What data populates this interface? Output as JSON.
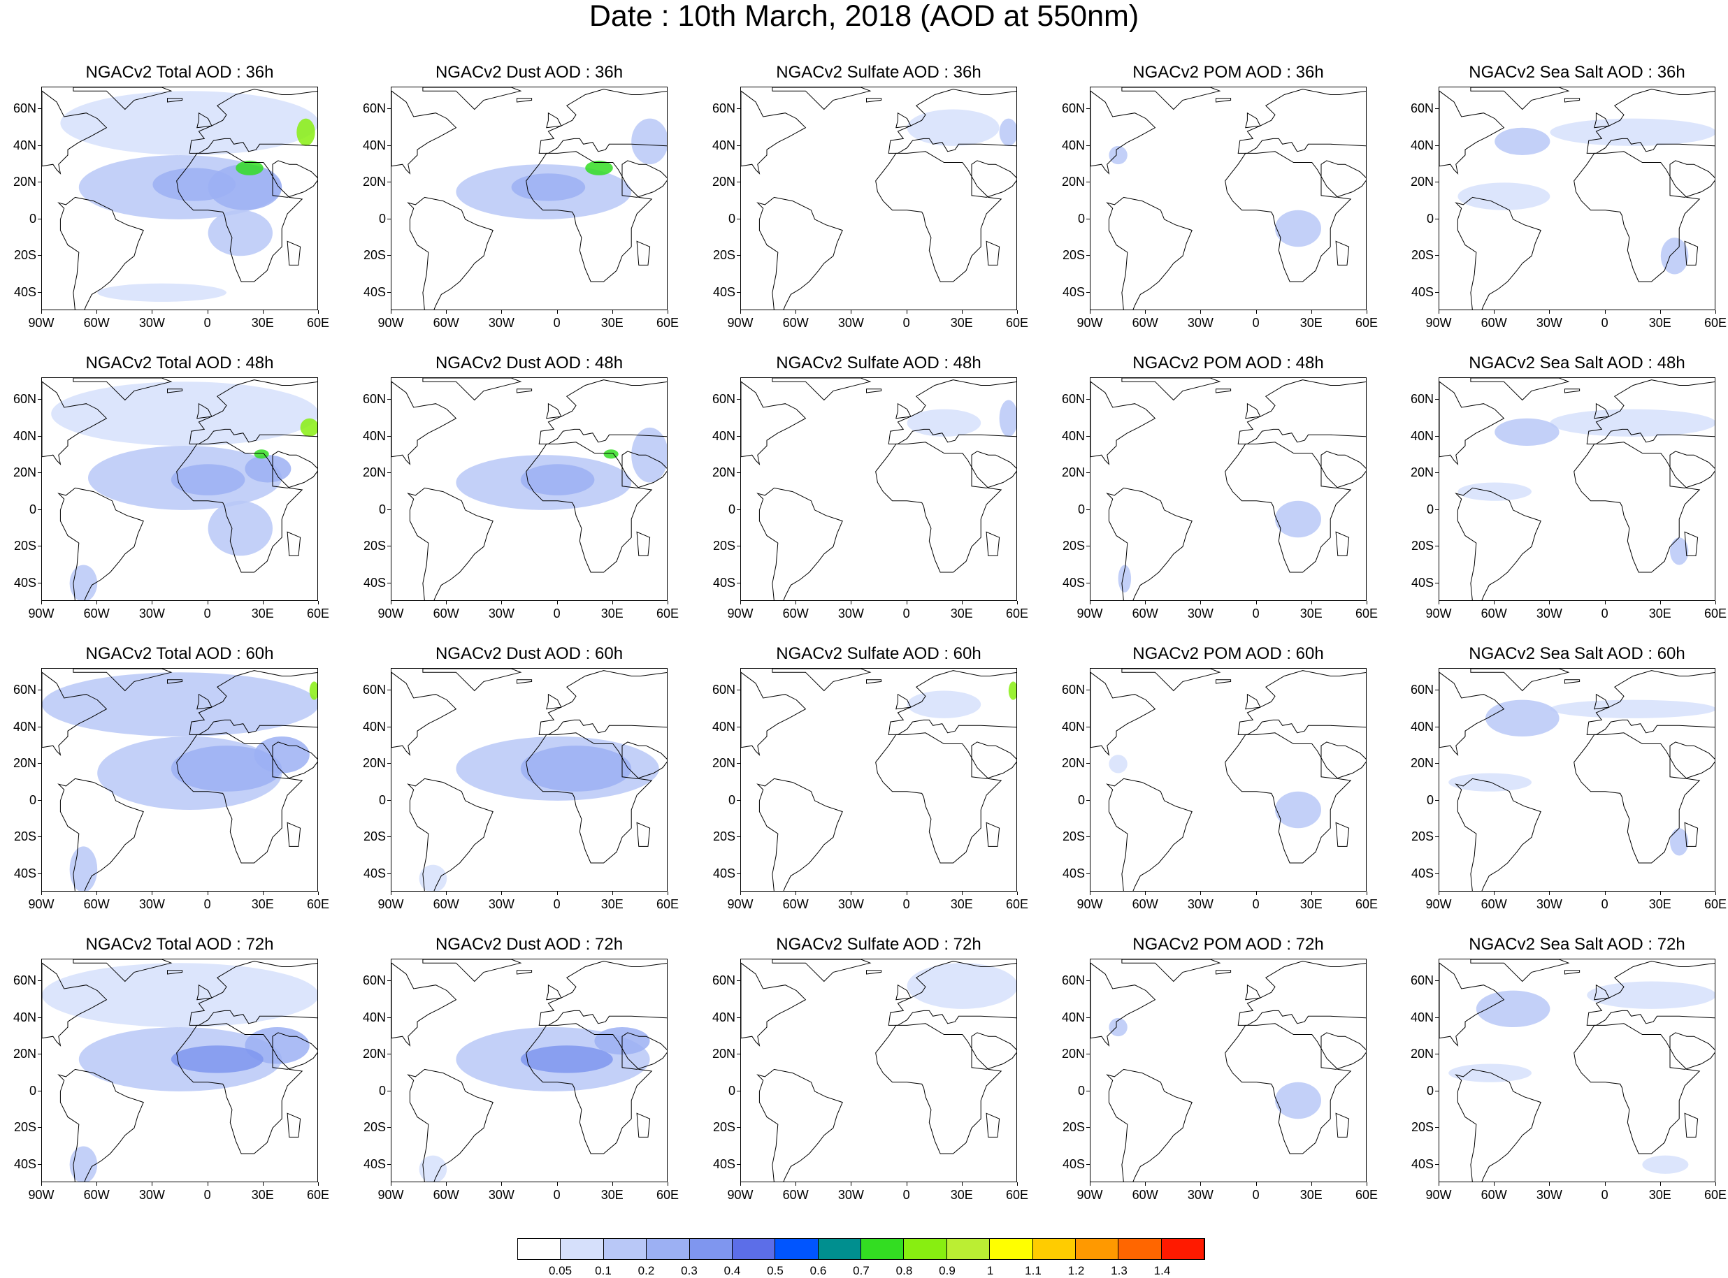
{
  "figure": {
    "title": "Date : 10th March, 2018 (AOD at 550nm)"
  },
  "axes": {
    "lon_ticks": [
      "90W",
      "60W",
      "30W",
      "0",
      "30E",
      "60E"
    ],
    "lat_ticks": [
      "60N",
      "40N",
      "20N",
      "0",
      "20S",
      "40S"
    ],
    "lon_range": [
      -90,
      60
    ],
    "lat_range": [
      -50,
      72
    ]
  },
  "rows": [
    {
      "hour": "36h",
      "panels": [
        {
          "variable": "total",
          "title": "NGACv2 Total AOD : 36h"
        },
        {
          "variable": "dust",
          "title": "NGACv2 Dust AOD : 36h"
        },
        {
          "variable": "sulfate",
          "title": "NGACv2 Sulfate AOD : 36h"
        },
        {
          "variable": "pom",
          "title": "NGACv2 POM AOD : 36h"
        },
        {
          "variable": "seasalt",
          "title": "NGACv2 Sea Salt AOD : 36h"
        }
      ]
    },
    {
      "hour": "48h",
      "panels": [
        {
          "variable": "total",
          "title": "NGACv2 Total AOD : 48h"
        },
        {
          "variable": "dust",
          "title": "NGACv2 Dust AOD : 48h"
        },
        {
          "variable": "sulfate",
          "title": "NGACv2 Sulfate AOD : 48h"
        },
        {
          "variable": "pom",
          "title": "NGACv2 POM AOD : 48h"
        },
        {
          "variable": "seasalt",
          "title": "NGACv2 Sea Salt AOD : 48h"
        }
      ]
    },
    {
      "hour": "60h",
      "panels": [
        {
          "variable": "total",
          "title": "NGACv2 Total AOD : 60h"
        },
        {
          "variable": "dust",
          "title": "NGACv2 Dust AOD : 60h"
        },
        {
          "variable": "sulfate",
          "title": "NGACv2 Sulfate AOD : 60h"
        },
        {
          "variable": "pom",
          "title": "NGACv2 POM AOD : 60h"
        },
        {
          "variable": "seasalt",
          "title": "NGACv2 Sea Salt AOD : 60h"
        }
      ]
    },
    {
      "hour": "72h",
      "panels": [
        {
          "variable": "total",
          "title": "NGACv2 Total AOD : 72h"
        },
        {
          "variable": "dust",
          "title": "NGACv2 Dust AOD : 72h"
        },
        {
          "variable": "sulfate",
          "title": "NGACv2 Sulfate AOD : 72h"
        },
        {
          "variable": "pom",
          "title": "NGACv2 POM AOD : 72h"
        },
        {
          "variable": "seasalt",
          "title": "NGACv2 Sea Salt  AOD : 72h"
        }
      ]
    }
  ],
  "colorbar": {
    "labels": [
      "0.05",
      "0.1",
      "0.2",
      "0.3",
      "0.4",
      "0.5",
      "0.6",
      "0.7",
      "0.8",
      "0.9",
      "1",
      "1.1",
      "1.2",
      "1.3",
      "1.4"
    ],
    "colors": [
      "#ffffff",
      "#d6e0fb",
      "#b9c8f7",
      "#9cb0f3",
      "#7f96ef",
      "#5c6ee8",
      "#0055ff",
      "#008f8f",
      "#33dd22",
      "#88ee11",
      "#bbee33",
      "#ffff00",
      "#ffcc00",
      "#ff9900",
      "#ff6600",
      "#ff1a00"
    ]
  },
  "chart_data": [
    {
      "type": "heatmap",
      "title": "NGACv2 Total AOD",
      "variable": "total",
      "regions_by_hour": {
        "36h": [
          {
            "lon": [
              -30,
              15
            ],
            "lat": [
              10,
              28
            ],
            "level": 3
          },
          {
            "lon": [
              0,
              40
            ],
            "lat": [
              5,
              30
            ],
            "level": 3
          },
          {
            "lon": [
              15,
              30
            ],
            "lat": [
              24,
              32
            ],
            "level": 8
          },
          {
            "lon": [
              48,
              58
            ],
            "lat": [
              40,
              55
            ],
            "level": 9
          },
          {
            "lon": [
              -70,
              40
            ],
            "lat": [
              0,
              35
            ],
            "level": 2
          },
          {
            "lon": [
              -80,
              60
            ],
            "lat": [
              35,
              70
            ],
            "level": 1
          },
          {
            "lon": [
              -60,
              10
            ],
            "lat": [
              -45,
              -35
            ],
            "level": 1
          },
          {
            "lon": [
              0,
              35
            ],
            "lat": [
              -20,
              5
            ],
            "level": 2
          }
        ],
        "48h": [
          {
            "lon": [
              -20,
              20
            ],
            "lat": [
              8,
              25
            ],
            "level": 3
          },
          {
            "lon": [
              20,
              45
            ],
            "lat": [
              15,
              30
            ],
            "level": 3
          },
          {
            "lon": [
              25,
              33
            ],
            "lat": [
              28,
              33
            ],
            "level": 8
          },
          {
            "lon": [
              50,
              60
            ],
            "lat": [
              40,
              50
            ],
            "level": 9
          },
          {
            "lon": [
              -65,
              40
            ],
            "lat": [
              0,
              35
            ],
            "level": 2
          },
          {
            "lon": [
              -85,
              60
            ],
            "lat": [
              35,
              70
            ],
            "level": 1
          },
          {
            "lon": [
              -75,
              -60
            ],
            "lat": [
              -50,
              -30
            ],
            "level": 2
          },
          {
            "lon": [
              0,
              35
            ],
            "lat": [
              -25,
              5
            ],
            "level": 2
          }
        ],
        "60h": [
          {
            "lon": [
              -20,
              40
            ],
            "lat": [
              5,
              30
            ],
            "level": 3
          },
          {
            "lon": [
              25,
              55
            ],
            "lat": [
              15,
              35
            ],
            "level": 3
          },
          {
            "lon": [
              55,
              60
            ],
            "lat": [
              55,
              65
            ],
            "level": 9
          },
          {
            "lon": [
              -60,
              40
            ],
            "lat": [
              -5,
              35
            ],
            "level": 2
          },
          {
            "lon": [
              -90,
              60
            ],
            "lat": [
              35,
              70
            ],
            "level": 2
          },
          {
            "lon": [
              -75,
              -60
            ],
            "lat": [
              -50,
              -25
            ],
            "level": 2
          }
        ],
        "72h": [
          {
            "lon": [
              -20,
              30
            ],
            "lat": [
              10,
              25
            ],
            "level": 4
          },
          {
            "lon": [
              20,
              55
            ],
            "lat": [
              15,
              35
            ],
            "level": 3
          },
          {
            "lon": [
              -70,
              40
            ],
            "lat": [
              0,
              35
            ],
            "level": 2
          },
          {
            "lon": [
              -90,
              60
            ],
            "lat": [
              35,
              70
            ],
            "level": 1
          },
          {
            "lon": [
              -75,
              -60
            ],
            "lat": [
              -50,
              -30
            ],
            "level": 2
          }
        ]
      }
    },
    {
      "type": "heatmap",
      "title": "NGACv2 Dust AOD",
      "variable": "dust",
      "regions_by_hour": {
        "36h": [
          {
            "lon": [
              -25,
              15
            ],
            "lat": [
              10,
              25
            ],
            "level": 3
          },
          {
            "lon": [
              15,
              30
            ],
            "lat": [
              24,
              32
            ],
            "level": 8
          },
          {
            "lon": [
              -55,
              40
            ],
            "lat": [
              0,
              30
            ],
            "level": 2
          },
          {
            "lon": [
              40,
              60
            ],
            "lat": [
              30,
              55
            ],
            "level": 2
          }
        ],
        "48h": [
          {
            "lon": [
              -20,
              20
            ],
            "lat": [
              8,
              25
            ],
            "level": 3
          },
          {
            "lon": [
              25,
              33
            ],
            "lat": [
              28,
              33
            ],
            "level": 8
          },
          {
            "lon": [
              -55,
              40
            ],
            "lat": [
              0,
              30
            ],
            "level": 2
          },
          {
            "lon": [
              40,
              60
            ],
            "lat": [
              15,
              45
            ],
            "level": 2
          }
        ],
        "60h": [
          {
            "lon": [
              -20,
              40
            ],
            "lat": [
              5,
              30
            ],
            "level": 3
          },
          {
            "lon": [
              -55,
              55
            ],
            "lat": [
              0,
              35
            ],
            "level": 2
          },
          {
            "lon": [
              -75,
              -60
            ],
            "lat": [
              -50,
              -35
            ],
            "level": 1
          }
        ],
        "72h": [
          {
            "lon": [
              -20,
              30
            ],
            "lat": [
              10,
              25
            ],
            "level": 4
          },
          {
            "lon": [
              20,
              50
            ],
            "lat": [
              20,
              35
            ],
            "level": 3
          },
          {
            "lon": [
              -55,
              50
            ],
            "lat": [
              0,
              35
            ],
            "level": 2
          },
          {
            "lon": [
              -75,
              -60
            ],
            "lat": [
              -50,
              -35
            ],
            "level": 1
          }
        ]
      }
    },
    {
      "type": "heatmap",
      "title": "NGACv2 Sulfate AOD",
      "variable": "sulfate",
      "regions_by_hour": {
        "36h": [
          {
            "lon": [
              0,
              50
            ],
            "lat": [
              40,
              60
            ],
            "level": 1
          },
          {
            "lon": [
              50,
              60
            ],
            "lat": [
              40,
              55
            ],
            "level": 2
          }
        ],
        "48h": [
          {
            "lon": [
              0,
              40
            ],
            "lat": [
              40,
              55
            ],
            "level": 1
          },
          {
            "lon": [
              50,
              60
            ],
            "lat": [
              40,
              60
            ],
            "level": 2
          }
        ],
        "60h": [
          {
            "lon": [
              0,
              40
            ],
            "lat": [
              45,
              60
            ],
            "level": 1
          },
          {
            "lon": [
              55,
              60
            ],
            "lat": [
              55,
              65
            ],
            "level": 9
          }
        ],
        "72h": [
          {
            "lon": [
              0,
              60
            ],
            "lat": [
              45,
              70
            ],
            "level": 1
          }
        ]
      }
    },
    {
      "type": "heatmap",
      "title": "NGACv2 POM AOD",
      "variable": "pom",
      "regions_by_hour": {
        "36h": [
          {
            "lon": [
              10,
              35
            ],
            "lat": [
              -15,
              5
            ],
            "level": 2
          },
          {
            "lon": [
              -80,
              -70
            ],
            "lat": [
              30,
              40
            ],
            "level": 2
          }
        ],
        "48h": [
          {
            "lon": [
              10,
              35
            ],
            "lat": [
              -15,
              5
            ],
            "level": 2
          },
          {
            "lon": [
              -75,
              -68
            ],
            "lat": [
              -45,
              -30
            ],
            "level": 2
          }
        ],
        "60h": [
          {
            "lon": [
              10,
              35
            ],
            "lat": [
              -15,
              5
            ],
            "level": 2
          },
          {
            "lon": [
              -80,
              -70
            ],
            "lat": [
              15,
              25
            ],
            "level": 1
          }
        ],
        "72h": [
          {
            "lon": [
              10,
              35
            ],
            "lat": [
              -15,
              5
            ],
            "level": 2
          },
          {
            "lon": [
              -80,
              -70
            ],
            "lat": [
              30,
              40
            ],
            "level": 2
          }
        ]
      }
    },
    {
      "type": "heatmap",
      "title": "NGACv2 Sea Salt AOD",
      "variable": "seasalt",
      "regions_by_hour": {
        "36h": [
          {
            "lon": [
              -60,
              -30
            ],
            "lat": [
              35,
              50
            ],
            "level": 2
          },
          {
            "lon": [
              -30,
              60
            ],
            "lat": [
              40,
              55
            ],
            "level": 1
          },
          {
            "lon": [
              -80,
              -30
            ],
            "lat": [
              5,
              20
            ],
            "level": 1
          },
          {
            "lon": [
              30,
              45
            ],
            "lat": [
              -30,
              -10
            ],
            "level": 2
          }
        ],
        "48h": [
          {
            "lon": [
              -60,
              -25
            ],
            "lat": [
              35,
              50
            ],
            "level": 2
          },
          {
            "lon": [
              -30,
              60
            ],
            "lat": [
              40,
              55
            ],
            "level": 1
          },
          {
            "lon": [
              -80,
              -40
            ],
            "lat": [
              5,
              15
            ],
            "level": 1
          },
          {
            "lon": [
              35,
              45
            ],
            "lat": [
              -30,
              -15
            ],
            "level": 2
          }
        ],
        "60h": [
          {
            "lon": [
              -65,
              -25
            ],
            "lat": [
              35,
              55
            ],
            "level": 2
          },
          {
            "lon": [
              -30,
              60
            ],
            "lat": [
              45,
              55
            ],
            "level": 1
          },
          {
            "lon": [
              -85,
              -40
            ],
            "lat": [
              5,
              15
            ],
            "level": 1
          },
          {
            "lon": [
              35,
              45
            ],
            "lat": [
              -30,
              -15
            ],
            "level": 2
          }
        ],
        "72h": [
          {
            "lon": [
              -70,
              -30
            ],
            "lat": [
              35,
              55
            ],
            "level": 2
          },
          {
            "lon": [
              -10,
              60
            ],
            "lat": [
              45,
              60
            ],
            "level": 1
          },
          {
            "lon": [
              -85,
              -40
            ],
            "lat": [
              5,
              15
            ],
            "level": 1
          },
          {
            "lon": [
              20,
              45
            ],
            "lat": [
              -45,
              -35
            ],
            "level": 1
          }
        ]
      }
    }
  ]
}
